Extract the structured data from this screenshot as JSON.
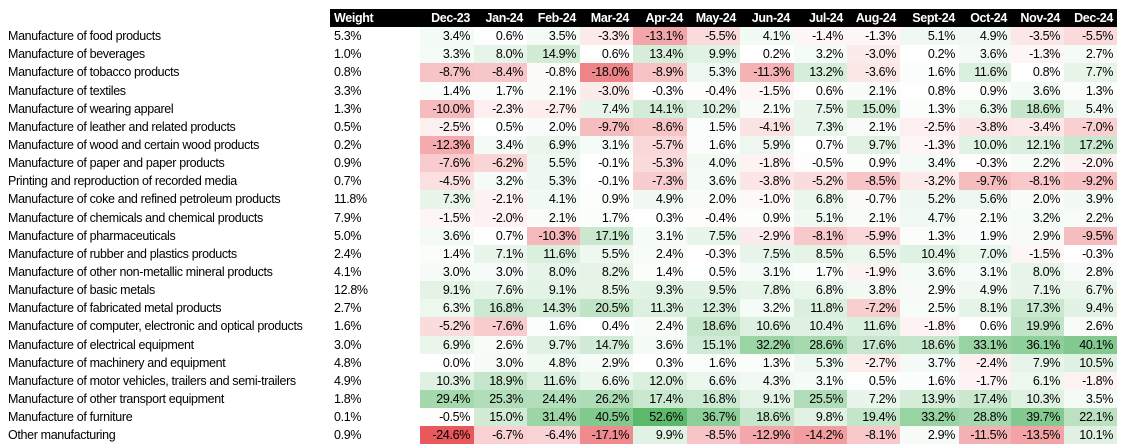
{
  "chart_data": {
    "type": "heatmap",
    "columns": [
      "Weight",
      "Dec-23",
      "Jan-24",
      "Feb-24",
      "Mar-24",
      "Apr-24",
      "May-24",
      "Jun-24",
      "Jul-24",
      "Aug-24",
      "Sept-24",
      "Oct-24",
      "Nov-24",
      "Dec-24"
    ],
    "rows": [
      {
        "label": "Manufacture of food products",
        "weight": "5.3%",
        "values": [
          "3.4%",
          "0.6%",
          "3.5%",
          "-3.3%",
          "-13.1%",
          "-5.5%",
          "4.1%",
          "-1.4%",
          "-1.3%",
          "5.1%",
          "4.9%",
          "-3.5%",
          "-5.5%"
        ]
      },
      {
        "label": "Manufacture of beverages",
        "weight": "1.0%",
        "values": [
          "3.3%",
          "8.0%",
          "14.9%",
          "0.6%",
          "13.4%",
          "9.9%",
          "0.2%",
          "3.2%",
          "-3.0%",
          "0.2%",
          "3.6%",
          "-1.3%",
          "2.7%"
        ]
      },
      {
        "label": "Manufacture of tobacco products",
        "weight": "0.8%",
        "values": [
          "-8.7%",
          "-8.4%",
          "-0.8%",
          "-18.0%",
          "-8.9%",
          "5.3%",
          "-11.3%",
          "13.2%",
          "-3.6%",
          "1.6%",
          "11.6%",
          "0.8%",
          "7.7%"
        ]
      },
      {
        "label": "Manufacture of textiles",
        "weight": "3.3%",
        "values": [
          "1.4%",
          "1.7%",
          "2.1%",
          "-3.0%",
          "-0.3%",
          "-0.4%",
          "-1.5%",
          "0.6%",
          "2.1%",
          "0.8%",
          "0.9%",
          "3.6%",
          "1.3%"
        ]
      },
      {
        "label": "Manufacture of wearing apparel",
        "weight": "1.3%",
        "values": [
          "-10.0%",
          "-2.3%",
          "-2.7%",
          "7.4%",
          "14.1%",
          "10.2%",
          "2.1%",
          "7.5%",
          "15.0%",
          "1.3%",
          "6.3%",
          "18.6%",
          "5.4%"
        ]
      },
      {
        "label": "Manufacture of leather and related products",
        "weight": "0.5%",
        "values": [
          "-2.5%",
          "0.5%",
          "2.0%",
          "-9.7%",
          "-8.6%",
          "1.5%",
          "-4.1%",
          "7.3%",
          "2.1%",
          "-2.5%",
          "-3.8%",
          "-3.4%",
          "-7.0%"
        ]
      },
      {
        "label": "Manufacture of wood and certain wood products",
        "weight": "0.2%",
        "values": [
          "-12.3%",
          "3.4%",
          "6.9%",
          "3.1%",
          "-5.7%",
          "1.6%",
          "5.9%",
          "0.7%",
          "9.7%",
          "-1.3%",
          "10.0%",
          "12.1%",
          "17.2%"
        ]
      },
      {
        "label": "Manufacture of paper and paper products",
        "weight": "0.9%",
        "values": [
          "-7.6%",
          "-6.2%",
          "5.5%",
          "-0.1%",
          "-5.3%",
          "4.0%",
          "-1.8%",
          "-0.5%",
          "0.9%",
          "3.4%",
          "-0.3%",
          "2.2%",
          "-2.0%"
        ]
      },
      {
        "label": "Printing and reproduction of recorded media",
        "weight": "0.7%",
        "values": [
          "-4.5%",
          "3.2%",
          "5.3%",
          "-0.1%",
          "-7.3%",
          "3.6%",
          "-3.8%",
          "-5.2%",
          "-8.5%",
          "-3.2%",
          "-9.7%",
          "-8.1%",
          "-9.2%"
        ]
      },
      {
        "label": "Manufacture of coke and refined petroleum products",
        "weight": "11.8%",
        "values": [
          "7.3%",
          "-2.1%",
          "4.1%",
          "0.9%",
          "4.9%",
          "2.0%",
          "-1.0%",
          "6.8%",
          "-0.7%",
          "5.2%",
          "5.6%",
          "2.0%",
          "3.9%"
        ]
      },
      {
        "label": "Manufacture of chemicals and chemical products",
        "weight": "7.9%",
        "values": [
          "-1.5%",
          "-2.0%",
          "2.1%",
          "1.7%",
          "0.3%",
          "-0.4%",
          "0.9%",
          "5.1%",
          "2.1%",
          "4.7%",
          "2.1%",
          "3.2%",
          "2.2%"
        ]
      },
      {
        "label": "Manufacture of pharmaceuticals",
        "weight": "5.0%",
        "values": [
          "3.6%",
          "0.7%",
          "-10.3%",
          "17.1%",
          "3.1%",
          "7.5%",
          "-2.9%",
          "-8.1%",
          "-5.9%",
          "1.3%",
          "1.9%",
          "2.9%",
          "-9.5%"
        ]
      },
      {
        "label": "Manufacture of rubber and plastics products",
        "weight": "2.4%",
        "values": [
          "1.4%",
          "7.1%",
          "11.6%",
          "5.5%",
          "2.4%",
          "-0.3%",
          "7.5%",
          "8.5%",
          "6.5%",
          "10.4%",
          "7.0%",
          "-1.5%",
          "-0.3%"
        ]
      },
      {
        "label": "Manufacture of other non-metallic mineral products",
        "weight": "4.1%",
        "values": [
          "3.0%",
          "3.0%",
          "8.0%",
          "8.2%",
          "1.4%",
          "0.5%",
          "3.1%",
          "1.7%",
          "-1.9%",
          "3.6%",
          "3.1%",
          "8.0%",
          "2.8%"
        ]
      },
      {
        "label": "Manufacture of basic metals",
        "weight": "12.8%",
        "values": [
          "9.1%",
          "7.6%",
          "9.1%",
          "8.5%",
          "9.3%",
          "9.5%",
          "7.8%",
          "6.8%",
          "3.8%",
          "2.9%",
          "4.9%",
          "7.1%",
          "6.7%"
        ]
      },
      {
        "label": "Manufacture of fabricated metal products",
        "weight": "2.7%",
        "values": [
          "6.3%",
          "16.8%",
          "14.3%",
          "20.5%",
          "11.3%",
          "12.3%",
          "3.2%",
          "11.8%",
          "-7.2%",
          "2.5%",
          "8.1%",
          "17.3%",
          "9.4%"
        ]
      },
      {
        "label": "Manufacture of computer, electronic and optical products",
        "weight": "1.6%",
        "values": [
          "-5.2%",
          "-7.6%",
          "1.6%",
          "0.4%",
          "2.4%",
          "18.6%",
          "10.6%",
          "10.4%",
          "11.6%",
          "-1.8%",
          "0.6%",
          "19.9%",
          "2.6%"
        ]
      },
      {
        "label": "Manufacture of electrical equipment",
        "weight": "3.0%",
        "values": [
          "6.9%",
          "2.6%",
          "9.7%",
          "14.7%",
          "3.6%",
          "15.1%",
          "32.2%",
          "28.6%",
          "17.6%",
          "18.6%",
          "33.1%",
          "36.1%",
          "40.1%"
        ]
      },
      {
        "label": "Manufacture of machinery and equipment",
        "weight": "4.8%",
        "values": [
          "0.0%",
          "3.0%",
          "4.8%",
          "2.9%",
          "0.3%",
          "1.6%",
          "1.3%",
          "5.3%",
          "-2.7%",
          "3.7%",
          "-2.4%",
          "7.9%",
          "10.5%"
        ]
      },
      {
        "label": "Manufacture of motor vehicles, trailers and semi-trailers",
        "weight": "4.9%",
        "values": [
          "10.3%",
          "18.9%",
          "11.6%",
          "6.6%",
          "12.0%",
          "6.6%",
          "4.3%",
          "3.1%",
          "0.5%",
          "1.6%",
          "-1.7%",
          "6.1%",
          "-1.8%"
        ]
      },
      {
        "label": "Manufacture of other transport equipment",
        "weight": "1.8%",
        "values": [
          "29.4%",
          "25.3%",
          "24.4%",
          "26.2%",
          "17.4%",
          "16.8%",
          "9.1%",
          "25.5%",
          "7.2%",
          "13.9%",
          "17.4%",
          "10.3%",
          "3.5%"
        ]
      },
      {
        "label": "Manufacture of furniture",
        "weight": "0.1%",
        "values": [
          "-0.5%",
          "15.0%",
          "31.4%",
          "40.5%",
          "52.6%",
          "36.7%",
          "18.6%",
          "9.8%",
          "19.4%",
          "33.2%",
          "28.8%",
          "39.7%",
          "22.1%"
        ]
      },
      {
        "label": "Other manufacturing",
        "weight": "0.9%",
        "values": [
          "-24.6%",
          "-6.7%",
          "-6.4%",
          "-17.1%",
          "9.9%",
          "-8.5%",
          "-12.9%",
          "-14.2%",
          "-8.1%",
          "2.9%",
          "-11.5%",
          "-13.5%",
          "10.1%"
        ]
      }
    ],
    "colors": {
      "negative": "#e8555a",
      "neutral": "#ffffff",
      "positive": "#5bb86b",
      "header_bg": "#000000",
      "header_text": "#ffffff"
    },
    "color_scale": {
      "min": -25,
      "mid": 0,
      "max": 53
    }
  }
}
